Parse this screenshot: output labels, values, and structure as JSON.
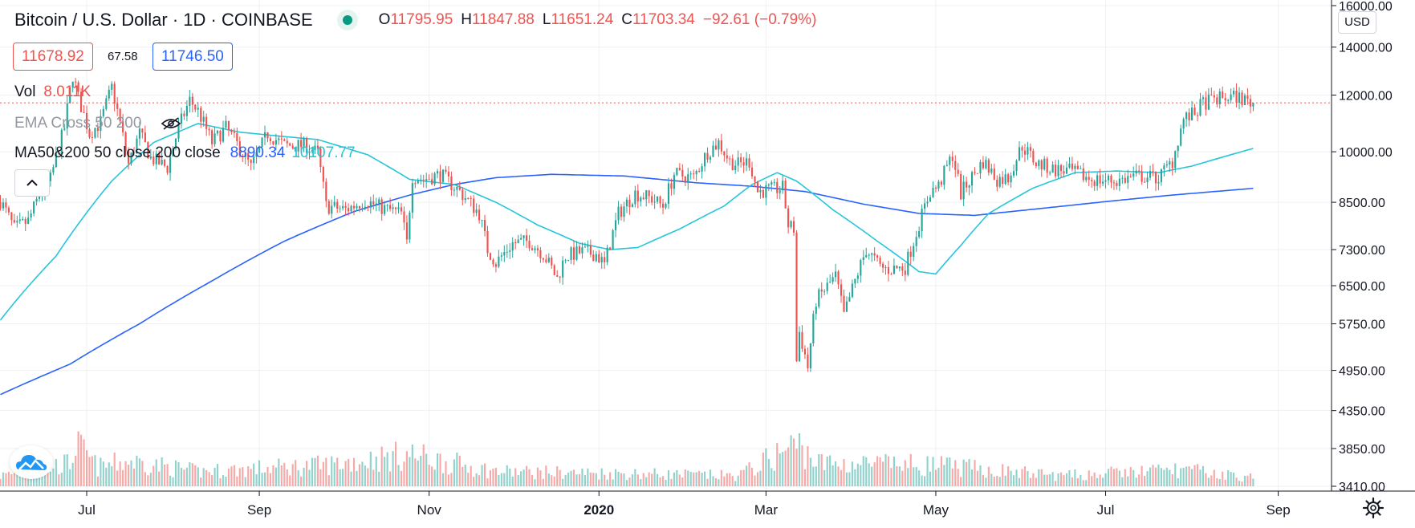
{
  "header": {
    "symbol_title": "Bitcoin / U.S. Dollar · 1D · COINBASE",
    "ohlc": {
      "o_label": "O",
      "o_value": "11795.95",
      "h_label": "H",
      "h_value": "11847.88",
      "l_label": "L",
      "l_value": "11651.24",
      "c_label": "C",
      "c_value": "11703.34",
      "change": "−92.61 (−0.79%)"
    },
    "bid": "11678.92",
    "spread": "67.58",
    "ask": "11746.50"
  },
  "indicators": {
    "vol_label": "Vol",
    "vol_value": "8.011K",
    "ema_label": "EMA Cross 50 200",
    "ma_label": "MA50&200 50 close 200 close",
    "ma200_value": "8890.34",
    "ma50_value": "10107.77"
  },
  "ui": {
    "collapse_icon": "chevron-up-icon",
    "currency": "USD",
    "logo": "tradingview-cloud-icon",
    "settings_icon": "gear-icon"
  },
  "colors": {
    "up": "#26a69a",
    "down": "#ef5350",
    "ma50": "#26c6da",
    "ma200": "#2962ff",
    "grid": "#eef0f4",
    "last_price_line": "#ef5350"
  },
  "chart_data": {
    "type": "candlestick",
    "scale": "log",
    "y_ticks": [
      "16000.00",
      "14000.00",
      "12000.00",
      "10000.00",
      "8500.00",
      "7300.00",
      "6500.00",
      "5750.00",
      "4950.00",
      "4350.00",
      "3850.00",
      "3410.00"
    ],
    "y_tick_values": [
      16000,
      14000,
      12000,
      10000,
      8500,
      7300,
      6500,
      5750,
      4950,
      4350,
      3850,
      3410
    ],
    "ylim": [
      3410,
      16000
    ],
    "x_tick_labels": [
      {
        "label": "Jul",
        "date": "2019-07-01",
        "bold": false
      },
      {
        "label": "Sep",
        "date": "2019-09-01",
        "bold": false
      },
      {
        "label": "Nov",
        "date": "2019-11-01",
        "bold": false
      },
      {
        "label": "2020",
        "date": "2020-01-01",
        "bold": true
      },
      {
        "label": "Mar",
        "date": "2020-03-01",
        "bold": false
      },
      {
        "label": "May",
        "date": "2020-05-01",
        "bold": false
      },
      {
        "label": "Jul",
        "date": "2020-07-01",
        "bold": false
      },
      {
        "label": "Sep",
        "date": "2020-09-01",
        "bold": false
      }
    ],
    "x_range": [
      "2019-05-31",
      "2020-09-20"
    ],
    "last_price": 11703.34,
    "close_anchors": [
      [
        "2019-05-31",
        8550
      ],
      [
        "2019-06-05",
        7800
      ],
      [
        "2019-06-10",
        8000
      ],
      [
        "2019-06-14",
        8700
      ],
      [
        "2019-06-18",
        9150
      ],
      [
        "2019-06-23",
        10800
      ],
      [
        "2019-06-26",
        12800
      ],
      [
        "2019-06-28",
        11900
      ],
      [
        "2019-07-02",
        10600
      ],
      [
        "2019-07-06",
        11000
      ],
      [
        "2019-07-10",
        12300
      ],
      [
        "2019-07-12",
        11400
      ],
      [
        "2019-07-16",
        9600
      ],
      [
        "2019-07-20",
        10600
      ],
      [
        "2019-07-24",
        9800
      ],
      [
        "2019-07-30",
        9500
      ],
      [
        "2019-08-03",
        10800
      ],
      [
        "2019-08-07",
        11800
      ],
      [
        "2019-08-10",
        11400
      ],
      [
        "2019-08-15",
        10300
      ],
      [
        "2019-08-20",
        10800
      ],
      [
        "2019-08-25",
        10100
      ],
      [
        "2019-08-29",
        9500
      ],
      [
        "2019-09-04",
        10600
      ],
      [
        "2019-09-10",
        10200
      ],
      [
        "2019-09-18",
        10200
      ],
      [
        "2019-09-22",
        9950
      ],
      [
        "2019-09-25",
        8400
      ],
      [
        "2019-10-02",
        8300
      ],
      [
        "2019-10-09",
        8550
      ],
      [
        "2019-10-15",
        8350
      ],
      [
        "2019-10-22",
        8200
      ],
      [
        "2019-10-24",
        7450
      ],
      [
        "2019-10-26",
        9250
      ],
      [
        "2019-10-30",
        9150
      ],
      [
        "2019-11-05",
        9300
      ],
      [
        "2019-11-12",
        8800
      ],
      [
        "2019-11-19",
        8200
      ],
      [
        "2019-11-22",
        7300
      ],
      [
        "2019-11-25",
        7000
      ],
      [
        "2019-12-01",
        7450
      ],
      [
        "2019-12-07",
        7500
      ],
      [
        "2019-12-12",
        7200
      ],
      [
        "2019-12-17",
        6650
      ],
      [
        "2019-12-20",
        7150
      ],
      [
        "2019-12-26",
        7250
      ],
      [
        "2019-12-31",
        7200
      ],
      [
        "2020-01-03",
        6950
      ],
      [
        "2020-01-06",
        7700
      ],
      [
        "2020-01-08",
        8200
      ],
      [
        "2020-01-14",
        8750
      ],
      [
        "2020-01-20",
        8600
      ],
      [
        "2020-01-24",
        8400
      ],
      [
        "2020-01-28",
        9300
      ],
      [
        "2020-02-04",
        9200
      ],
      [
        "2020-02-09",
        10000
      ],
      [
        "2020-02-13",
        10300
      ],
      [
        "2020-02-17",
        9700
      ],
      [
        "2020-02-20",
        9600
      ],
      [
        "2020-02-24",
        9700
      ],
      [
        "2020-02-27",
        8800
      ],
      [
        "2020-03-03",
        8850
      ],
      [
        "2020-03-07",
        8900
      ],
      [
        "2020-03-09",
        7900
      ],
      [
        "2020-03-11",
        7800
      ],
      [
        "2020-03-12",
        5100
      ],
      [
        "2020-03-13",
        5600
      ],
      [
        "2020-03-16",
        5000
      ],
      [
        "2020-03-19",
        6200
      ],
      [
        "2020-03-26",
        6700
      ],
      [
        "2020-03-29",
        5900
      ],
      [
        "2020-04-06",
        7300
      ],
      [
        "2020-04-11",
        6900
      ],
      [
        "2020-04-14",
        6850
      ],
      [
        "2020-04-20",
        6900
      ],
      [
        "2020-04-23",
        7500
      ],
      [
        "2020-04-29",
        8800
      ],
      [
        "2020-05-02",
        8950
      ],
      [
        "2020-05-07",
        9900
      ],
      [
        "2020-05-10",
        8750
      ],
      [
        "2020-05-18",
        9700
      ],
      [
        "2020-05-23",
        9150
      ],
      [
        "2020-05-27",
        9200
      ],
      [
        "2020-06-01",
        10200
      ],
      [
        "2020-06-06",
        9650
      ],
      [
        "2020-06-12",
        9450
      ],
      [
        "2020-06-18",
        9400
      ],
      [
        "2020-06-26",
        9150
      ],
      [
        "2020-07-05",
        9100
      ],
      [
        "2020-07-12",
        9250
      ],
      [
        "2020-07-20",
        9200
      ],
      [
        "2020-07-25",
        9700
      ],
      [
        "2020-07-29",
        11100
      ],
      [
        "2020-08-02",
        11300
      ],
      [
        "2020-08-05",
        11700
      ],
      [
        "2020-08-10",
        11850
      ],
      [
        "2020-08-17",
        11950
      ],
      [
        "2020-08-20",
        11800
      ],
      [
        "2020-08-23",
        11703
      ]
    ],
    "ma50_anchors": [
      [
        "2019-05-31",
        5820
      ],
      [
        "2019-06-20",
        7150
      ],
      [
        "2019-07-10",
        9100
      ],
      [
        "2019-07-25",
        10300
      ],
      [
        "2019-08-10",
        10950
      ],
      [
        "2019-08-25",
        10650
      ],
      [
        "2019-09-10",
        10500
      ],
      [
        "2019-09-22",
        10400
      ],
      [
        "2019-10-10",
        9900
      ],
      [
        "2019-10-25",
        9150
      ],
      [
        "2019-11-10",
        9000
      ],
      [
        "2019-11-25",
        8500
      ],
      [
        "2019-12-10",
        7900
      ],
      [
        "2019-12-25",
        7450
      ],
      [
        "2020-01-05",
        7300
      ],
      [
        "2020-01-15",
        7350
      ],
      [
        "2020-01-30",
        7800
      ],
      [
        "2020-02-15",
        8400
      ],
      [
        "2020-02-25",
        9000
      ],
      [
        "2020-03-05",
        9350
      ],
      [
        "2020-03-12",
        9100
      ],
      [
        "2020-03-25",
        8300
      ],
      [
        "2020-04-10",
        7500
      ],
      [
        "2020-04-25",
        6800
      ],
      [
        "2020-05-01",
        6750
      ],
      [
        "2020-05-10",
        7400
      ],
      [
        "2020-05-20",
        8200
      ],
      [
        "2020-06-05",
        8900
      ],
      [
        "2020-06-20",
        9350
      ],
      [
        "2020-07-05",
        9400
      ],
      [
        "2020-07-20",
        9350
      ],
      [
        "2020-08-01",
        9550
      ],
      [
        "2020-08-23",
        10107
      ]
    ],
    "ma200_anchors": [
      [
        "2019-05-31",
        4580
      ],
      [
        "2019-06-25",
        5050
      ],
      [
        "2019-07-20",
        5750
      ],
      [
        "2019-08-15",
        6600
      ],
      [
        "2019-09-10",
        7500
      ],
      [
        "2019-10-05",
        8250
      ],
      [
        "2019-10-25",
        8700
      ],
      [
        "2019-11-10",
        9000
      ],
      [
        "2019-11-25",
        9200
      ],
      [
        "2019-12-15",
        9300
      ],
      [
        "2020-01-10",
        9250
      ],
      [
        "2020-02-05",
        9050
      ],
      [
        "2020-02-25",
        8950
      ],
      [
        "2020-03-15",
        8800
      ],
      [
        "2020-04-05",
        8450
      ],
      [
        "2020-04-25",
        8200
      ],
      [
        "2020-05-15",
        8150
      ],
      [
        "2020-06-10",
        8350
      ],
      [
        "2020-07-05",
        8550
      ],
      [
        "2020-07-25",
        8700
      ],
      [
        "2020-08-23",
        8890
      ]
    ],
    "volume_levels": [
      [
        "2019-05-31",
        0.25
      ],
      [
        "2019-06-25",
        0.55
      ],
      [
        "2019-06-27",
        1.0
      ],
      [
        "2019-07-05",
        0.45
      ],
      [
        "2019-07-16",
        0.6
      ],
      [
        "2019-08-10",
        0.35
      ],
      [
        "2019-09-24",
        0.5
      ],
      [
        "2019-10-25",
        0.75
      ],
      [
        "2019-11-25",
        0.35
      ],
      [
        "2020-01-15",
        0.3
      ],
      [
        "2020-02-20",
        0.25
      ],
      [
        "2020-03-12",
        1.0
      ],
      [
        "2020-03-13",
        0.95
      ],
      [
        "2020-03-20",
        0.55
      ],
      [
        "2020-04-30",
        0.5
      ],
      [
        "2020-05-10",
        0.45
      ],
      [
        "2020-06-15",
        0.25
      ],
      [
        "2020-07-28",
        0.4
      ],
      [
        "2020-08-23",
        0.2
      ]
    ]
  }
}
